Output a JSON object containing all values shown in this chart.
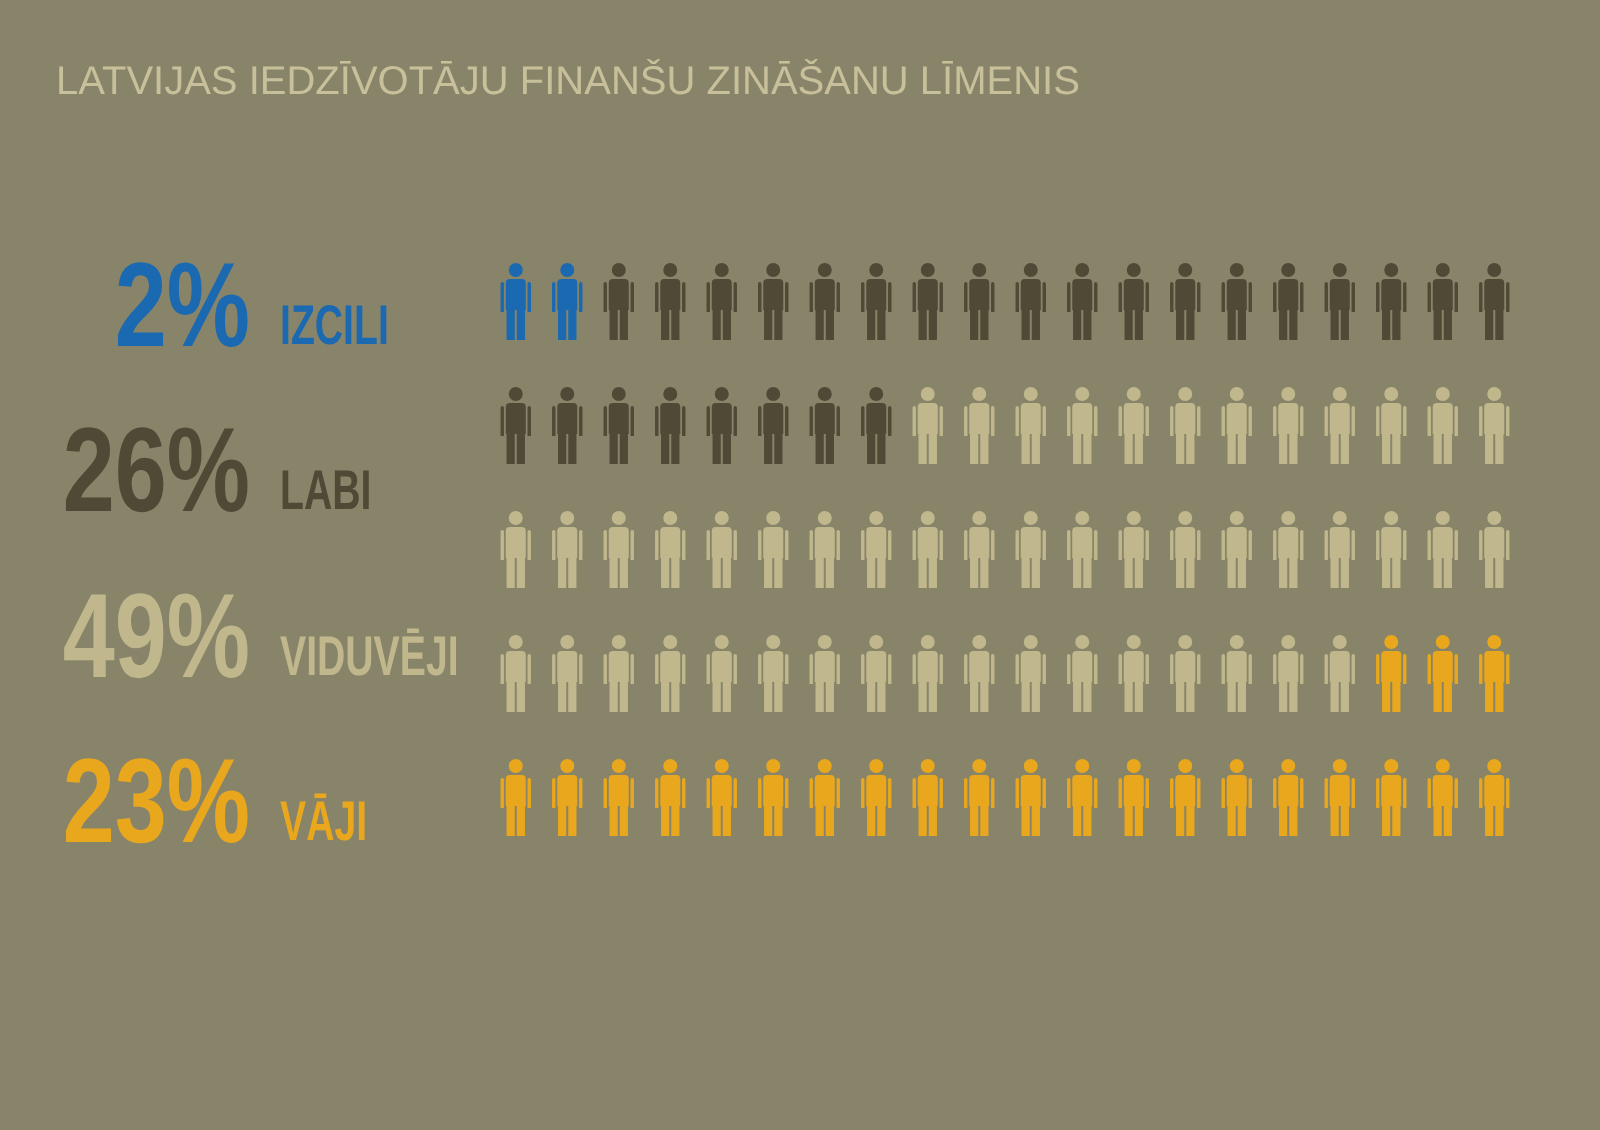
{
  "chart_data": {
    "type": "other",
    "title": "LATVIJAS IEDZĪVOTĀJU FINANŠU ZINĀŠANU LĪMENIS",
    "categories": [
      "IZCILI",
      "LABI",
      "VIDUVĒJI",
      "VĀJI"
    ],
    "values": [
      2,
      26,
      49,
      23
    ],
    "value_labels": [
      "2%",
      "26%",
      "49%",
      "23%"
    ],
    "colors": [
      "#1b69b1",
      "#4f4a36",
      "#c0b88c",
      "#e9a71d"
    ]
  }
}
